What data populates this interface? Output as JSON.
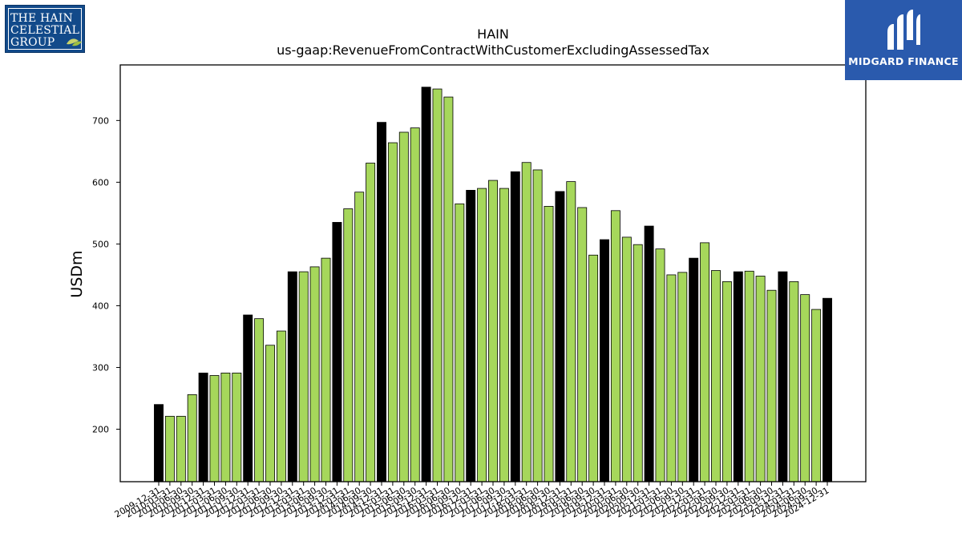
{
  "logos": {
    "left": {
      "lines": [
        "THE HAIN",
        "CELESTIAL",
        "GROUP"
      ],
      "icon": "leaf-icon"
    },
    "right": {
      "brand": "MIDGARD FINANCE",
      "icon": "midgard-mark-icon"
    }
  },
  "colors": {
    "annual": "#000000",
    "quarterly": "#a6d75b",
    "edge": "#000000"
  },
  "chart_data": {
    "type": "bar",
    "title": "HAIN",
    "subtitle": "us-gaap:RevenueFromContractWithCustomerExcludingAssessedTax",
    "xlabel": "",
    "ylabel": "USDm",
    "ylim": [
      115,
      790
    ],
    "yticks": [
      200,
      300,
      400,
      500,
      600,
      700
    ],
    "grid": false,
    "legend": "none",
    "first_label": "2009-12-31",
    "last_label": "2024-12-31",
    "categories": [
      "2009-12-31",
      "2010-03-31",
      "2010-06-30",
      "2010-09-30",
      "2010-12-31",
      "2011-03-31",
      "2011-06-30",
      "2011-09-30",
      "2011-12-31",
      "2012-03-31",
      "2012-06-30",
      "2012-09-30",
      "2012-12-31",
      "2013-03-31",
      "2013-06-30",
      "2013-09-30",
      "2013-12-31",
      "2014-03-31",
      "2014-06-30",
      "2014-09-30",
      "2014-12-31",
      "2015-03-31",
      "2015-06-30",
      "2015-09-30",
      "2015-12-31",
      "2016-03-31",
      "2016-06-30",
      "2016-09-30",
      "2016-12-31",
      "2017-03-31",
      "2017-06-30",
      "2017-09-30",
      "2017-12-31",
      "2018-03-31",
      "2018-06-30",
      "2018-09-30",
      "2018-12-31",
      "2019-03-31",
      "2019-06-30",
      "2019-09-30",
      "2019-12-31",
      "2020-03-31",
      "2020-06-30",
      "2020-09-30",
      "2020-12-31",
      "2021-03-31",
      "2021-06-30",
      "2021-09-30",
      "2021-12-31",
      "2022-03-31",
      "2022-06-30",
      "2022-09-30",
      "2022-12-31",
      "2023-03-31",
      "2023-06-30",
      "2023-09-30",
      "2023-12-31",
      "2024-03-31",
      "2024-06-30",
      "2024-09-30",
      "2024-12-31"
    ],
    "visible_tick_labels": [
      "2009-12-31",
      "2010-03-31",
      "2010-06-30",
      "2010-09-30",
      "2010-12-31",
      "2011-03-31",
      "2011-06-30",
      "2011-09-30",
      "2011-12-31",
      "2012-03-31",
      "2012-06-30",
      "2012-09-30",
      "2012-12-31",
      "2013-03-31",
      "2013-06-30",
      "2013-09-30",
      "2013-12-31",
      "2014-03-31",
      "2014-06-30",
      "2014-09-30",
      "2014-12-31",
      "2015-03-31",
      "2015-06-30",
      "2015-09-30",
      "2015-12-31",
      "2016-03-31",
      "2016-06-30",
      "2016-09-30",
      "2016-12-31",
      "2017-03-31",
      "2017-06-30",
      "2017-09-30",
      "2017-12-31",
      "2018-03-31",
      "2018-06-30",
      "2018-09-30",
      "2018-12-31",
      "2019-03-31",
      "2019-06-30",
      "2019-09-30",
      "2019-12-31",
      "2020-03-31",
      "2020-06-30",
      "2020-09-30",
      "2020-12-31",
      "2021-03-31",
      "2021-06-30",
      "2021-09-30",
      "2021-12-31",
      "2022-03-31",
      "2022-06-30",
      "2022-09-30",
      "2022-12-31",
      "2023-03-31",
      "2023-06-30",
      "2023-09-30",
      "2023-12-31",
      "2024-03-31",
      "2024-06-30",
      "2024-09-30",
      "2024-12-31"
    ],
    "values": [
      240,
      221,
      221,
      256,
      291,
      287,
      291,
      291,
      385,
      379,
      336,
      359,
      455,
      455,
      463,
      477,
      535,
      557,
      584,
      631,
      697,
      664,
      681,
      688,
      754,
      751,
      738,
      565,
      587,
      590,
      603,
      590,
      617,
      632,
      620,
      561,
      585,
      601,
      559,
      482,
      507,
      554,
      511,
      499,
      529,
      492,
      450,
      454,
      477,
      502,
      457,
      439,
      455,
      456,
      448,
      425,
      455,
      439,
      418,
      394,
      412
    ],
    "series_kind": [
      "annual",
      "quarterly",
      "quarterly",
      "quarterly",
      "annual",
      "quarterly",
      "quarterly",
      "quarterly",
      "annual",
      "quarterly",
      "quarterly",
      "quarterly",
      "annual",
      "quarterly",
      "quarterly",
      "quarterly",
      "annual",
      "quarterly",
      "quarterly",
      "quarterly",
      "annual",
      "quarterly",
      "quarterly",
      "quarterly",
      "annual",
      "quarterly",
      "quarterly",
      "quarterly",
      "annual",
      "quarterly",
      "quarterly",
      "quarterly",
      "annual",
      "quarterly",
      "quarterly",
      "quarterly",
      "annual",
      "quarterly",
      "quarterly",
      "quarterly",
      "annual",
      "quarterly",
      "quarterly",
      "quarterly",
      "annual",
      "quarterly",
      "quarterly",
      "quarterly",
      "annual",
      "quarterly",
      "quarterly",
      "quarterly",
      "annual",
      "quarterly",
      "quarterly",
      "quarterly",
      "annual",
      "quarterly",
      "quarterly",
      "quarterly",
      "annual"
    ]
  }
}
